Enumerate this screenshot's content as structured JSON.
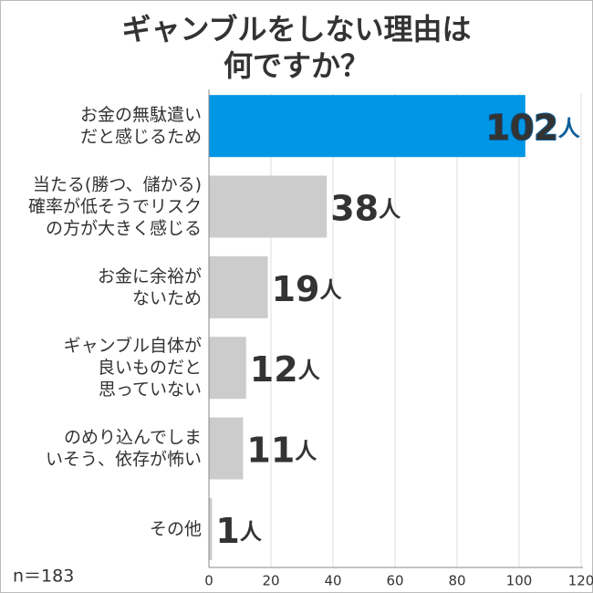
{
  "chart_data": {
    "type": "bar",
    "orientation": "horizontal",
    "title": "ギャンブルをしない理由は\n何ですか？",
    "annotation": "n＝183",
    "categories": [
      "お金の無駄遣い\nだと感じるため",
      "当たる(勝つ、儲かる)\n確率が低そうでリスク\nの方が大きく感じる",
      "お金に余裕が\nないため",
      "ギャンブル自体が\n良いものだと\n思っていない",
      "のめり込んでしま\nいそう、依存が怖い",
      "その他"
    ],
    "values": [
      102,
      38,
      19,
      12,
      11,
      1
    ],
    "value_labels": [
      "102人",
      "38人",
      "19人",
      "12人",
      "11人",
      "1人"
    ],
    "colors": [
      "#0096e6",
      "#cccccc",
      "#cccccc",
      "#cccccc",
      "#cccccc",
      "#cccccc"
    ],
    "xlim": [
      0,
      120
    ],
    "xticks": [
      0,
      20,
      40,
      60,
      80,
      100,
      120
    ],
    "grid": true
  }
}
